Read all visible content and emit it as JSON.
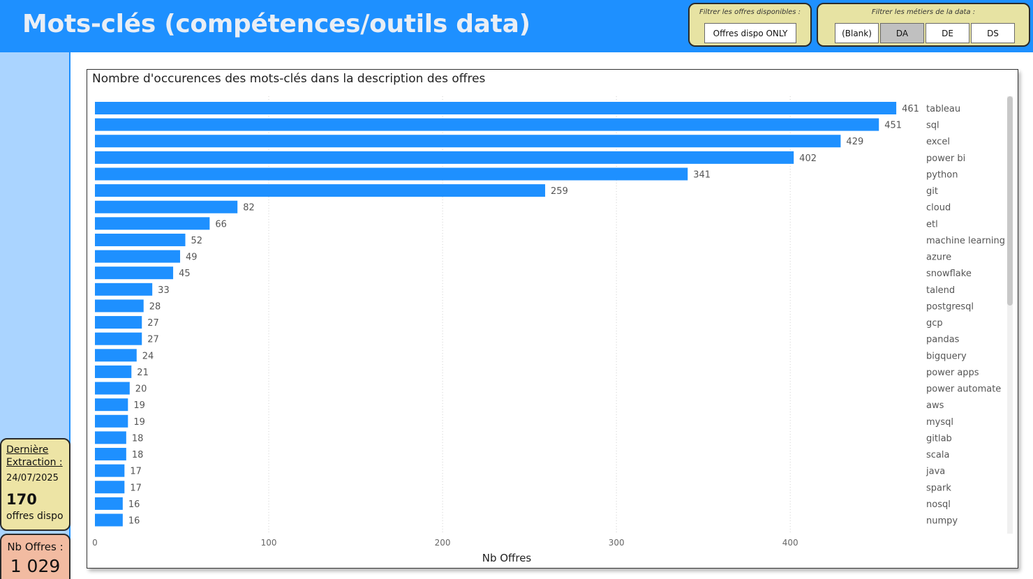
{
  "header": {
    "title": "Mots-clés (compétences/outils data)",
    "filters": {
      "dispo": {
        "title": "Filtrer les offres disponibles :",
        "button_label": "Offres dispo ONLY"
      },
      "metiers": {
        "title": "Filtrer les métiers de la data :",
        "options": [
          {
            "label": "(Blank)",
            "selected": false
          },
          {
            "label": "DA",
            "selected": true
          },
          {
            "label": "DE",
            "selected": false
          },
          {
            "label": "DS",
            "selected": false
          }
        ]
      }
    }
  },
  "sidebar": {
    "extraction": {
      "label": "Dernière Extraction :",
      "date": "24/07/2025",
      "dispo_count": "170",
      "dispo_label": "offres dispo"
    },
    "nb_offres": {
      "label": "Nb Offres :",
      "value": "1 029"
    }
  },
  "colors": {
    "header_bg": "#1e90ff",
    "bar": "#1e90ff",
    "card": "#ede4a5",
    "card_alt": "#f2bba1",
    "sidebar": "#aad4ff"
  },
  "chart_data": {
    "type": "bar",
    "orientation": "horizontal",
    "title": "Nombre d'occurences des mots-clés dans la description des offres",
    "xlabel": "Nb Offres",
    "ylabel": "",
    "xlim": [
      0,
      463
    ],
    "xticks": [
      0,
      100,
      200,
      300,
      400
    ],
    "grid": "vertical-dotted",
    "categories_position": "right",
    "categories": [
      "tableau",
      "sql",
      "excel",
      "power bi",
      "python",
      "git",
      "cloud",
      "etl",
      "machine learning",
      "azure",
      "snowflake",
      "talend",
      "postgresql",
      "gcp",
      "pandas",
      "bigquery",
      "power apps",
      "power automate",
      "aws",
      "mysql",
      "gitlab",
      "scala",
      "java",
      "spark",
      "nosql",
      "numpy"
    ],
    "values": [
      461,
      451,
      429,
      402,
      341,
      259,
      82,
      66,
      52,
      49,
      45,
      33,
      28,
      27,
      27,
      24,
      21,
      20,
      19,
      19,
      18,
      18,
      17,
      17,
      16,
      16
    ]
  }
}
